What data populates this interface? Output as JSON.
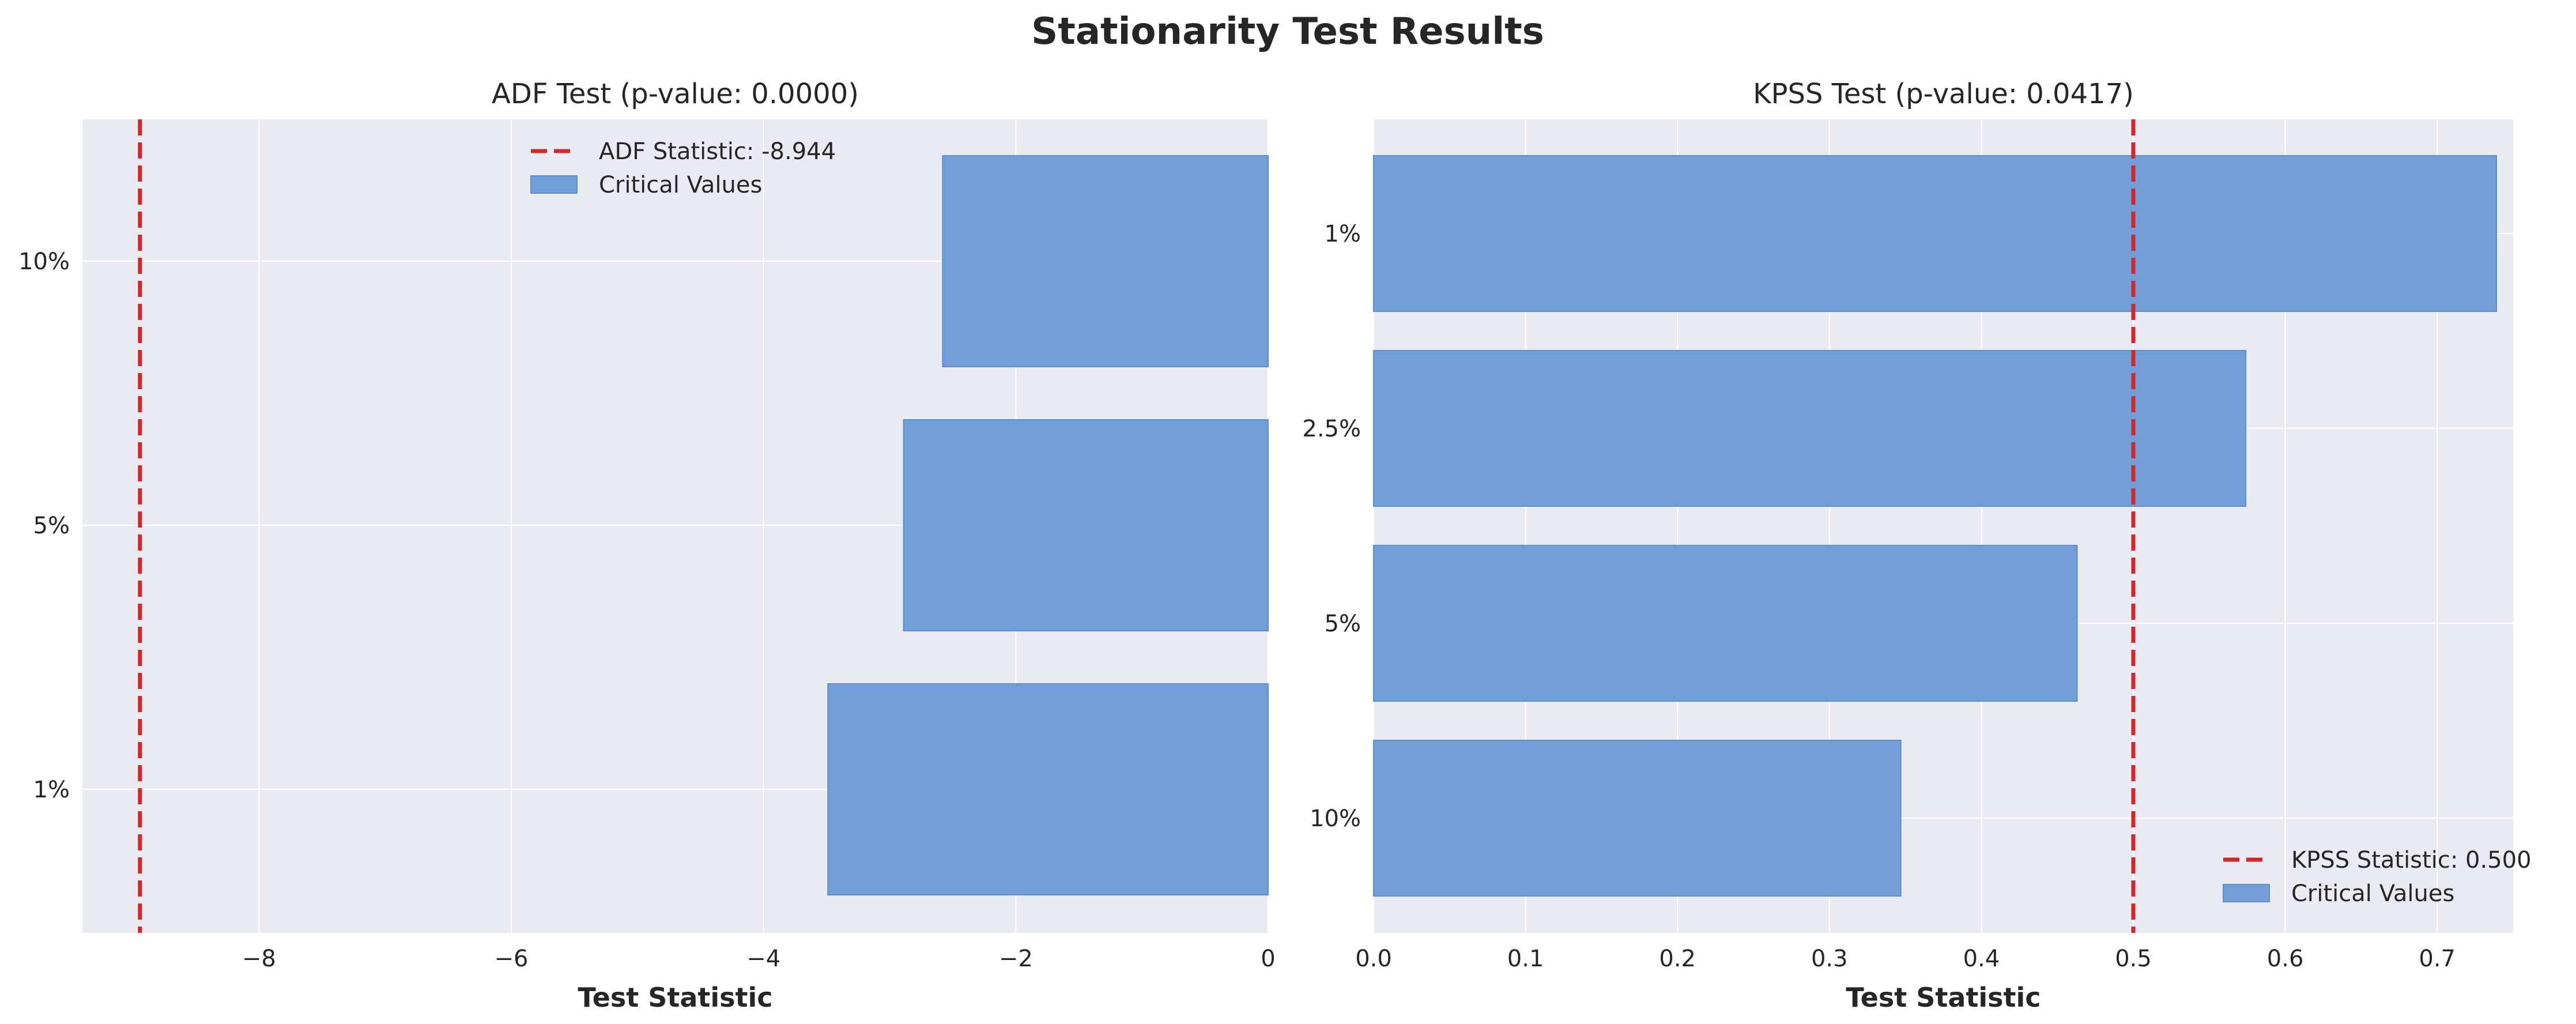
{
  "figure": {
    "suptitle": "Stationarity Test Results"
  },
  "colors": {
    "background": "#EAEAF2",
    "bar_fill": "#729FD8",
    "bar_edge": "#5B8ED0",
    "statistic_line": "#D62728",
    "grid": "#FFFFFF"
  },
  "chart_data": [
    {
      "type": "bar",
      "orientation": "horizontal",
      "title": "ADF Test (p-value: 0.0000)",
      "xlabel": "Test Statistic",
      "ylabel": "",
      "categories": [
        "1%",
        "5%",
        "10%"
      ],
      "series": [
        {
          "name": "Critical Values",
          "values": [
            -3.49,
            -2.89,
            -2.58
          ]
        }
      ],
      "reference_line": {
        "name": "ADF Statistic: -8.944",
        "value": -8.944,
        "style": "dashed"
      },
      "xlim": [
        -9.4,
        0
      ],
      "xticks": [
        -8,
        -6,
        -4,
        -2,
        0
      ],
      "xtick_labels": [
        "−8",
        "−6",
        "−4",
        "−2",
        "0"
      ],
      "grid": true,
      "legend": "upper center"
    },
    {
      "type": "bar",
      "orientation": "horizontal",
      "title": "KPSS Test (p-value: 0.0417)",
      "xlabel": "Test Statistic",
      "ylabel": "",
      "categories": [
        "10%",
        "5%",
        "2.5%",
        "1%"
      ],
      "series": [
        {
          "name": "Critical Values",
          "values": [
            0.347,
            0.463,
            0.574,
            0.739
          ]
        }
      ],
      "reference_line": {
        "name": "KPSS Statistic: 0.500",
        "value": 0.5,
        "style": "dashed"
      },
      "xlim": [
        0,
        0.75
      ],
      "xticks": [
        0.0,
        0.1,
        0.2,
        0.3,
        0.4,
        0.5,
        0.6,
        0.7
      ],
      "xtick_labels": [
        "0.0",
        "0.1",
        "0.2",
        "0.3",
        "0.4",
        "0.5",
        "0.6",
        "0.7"
      ],
      "grid": true,
      "legend": "lower right"
    }
  ]
}
